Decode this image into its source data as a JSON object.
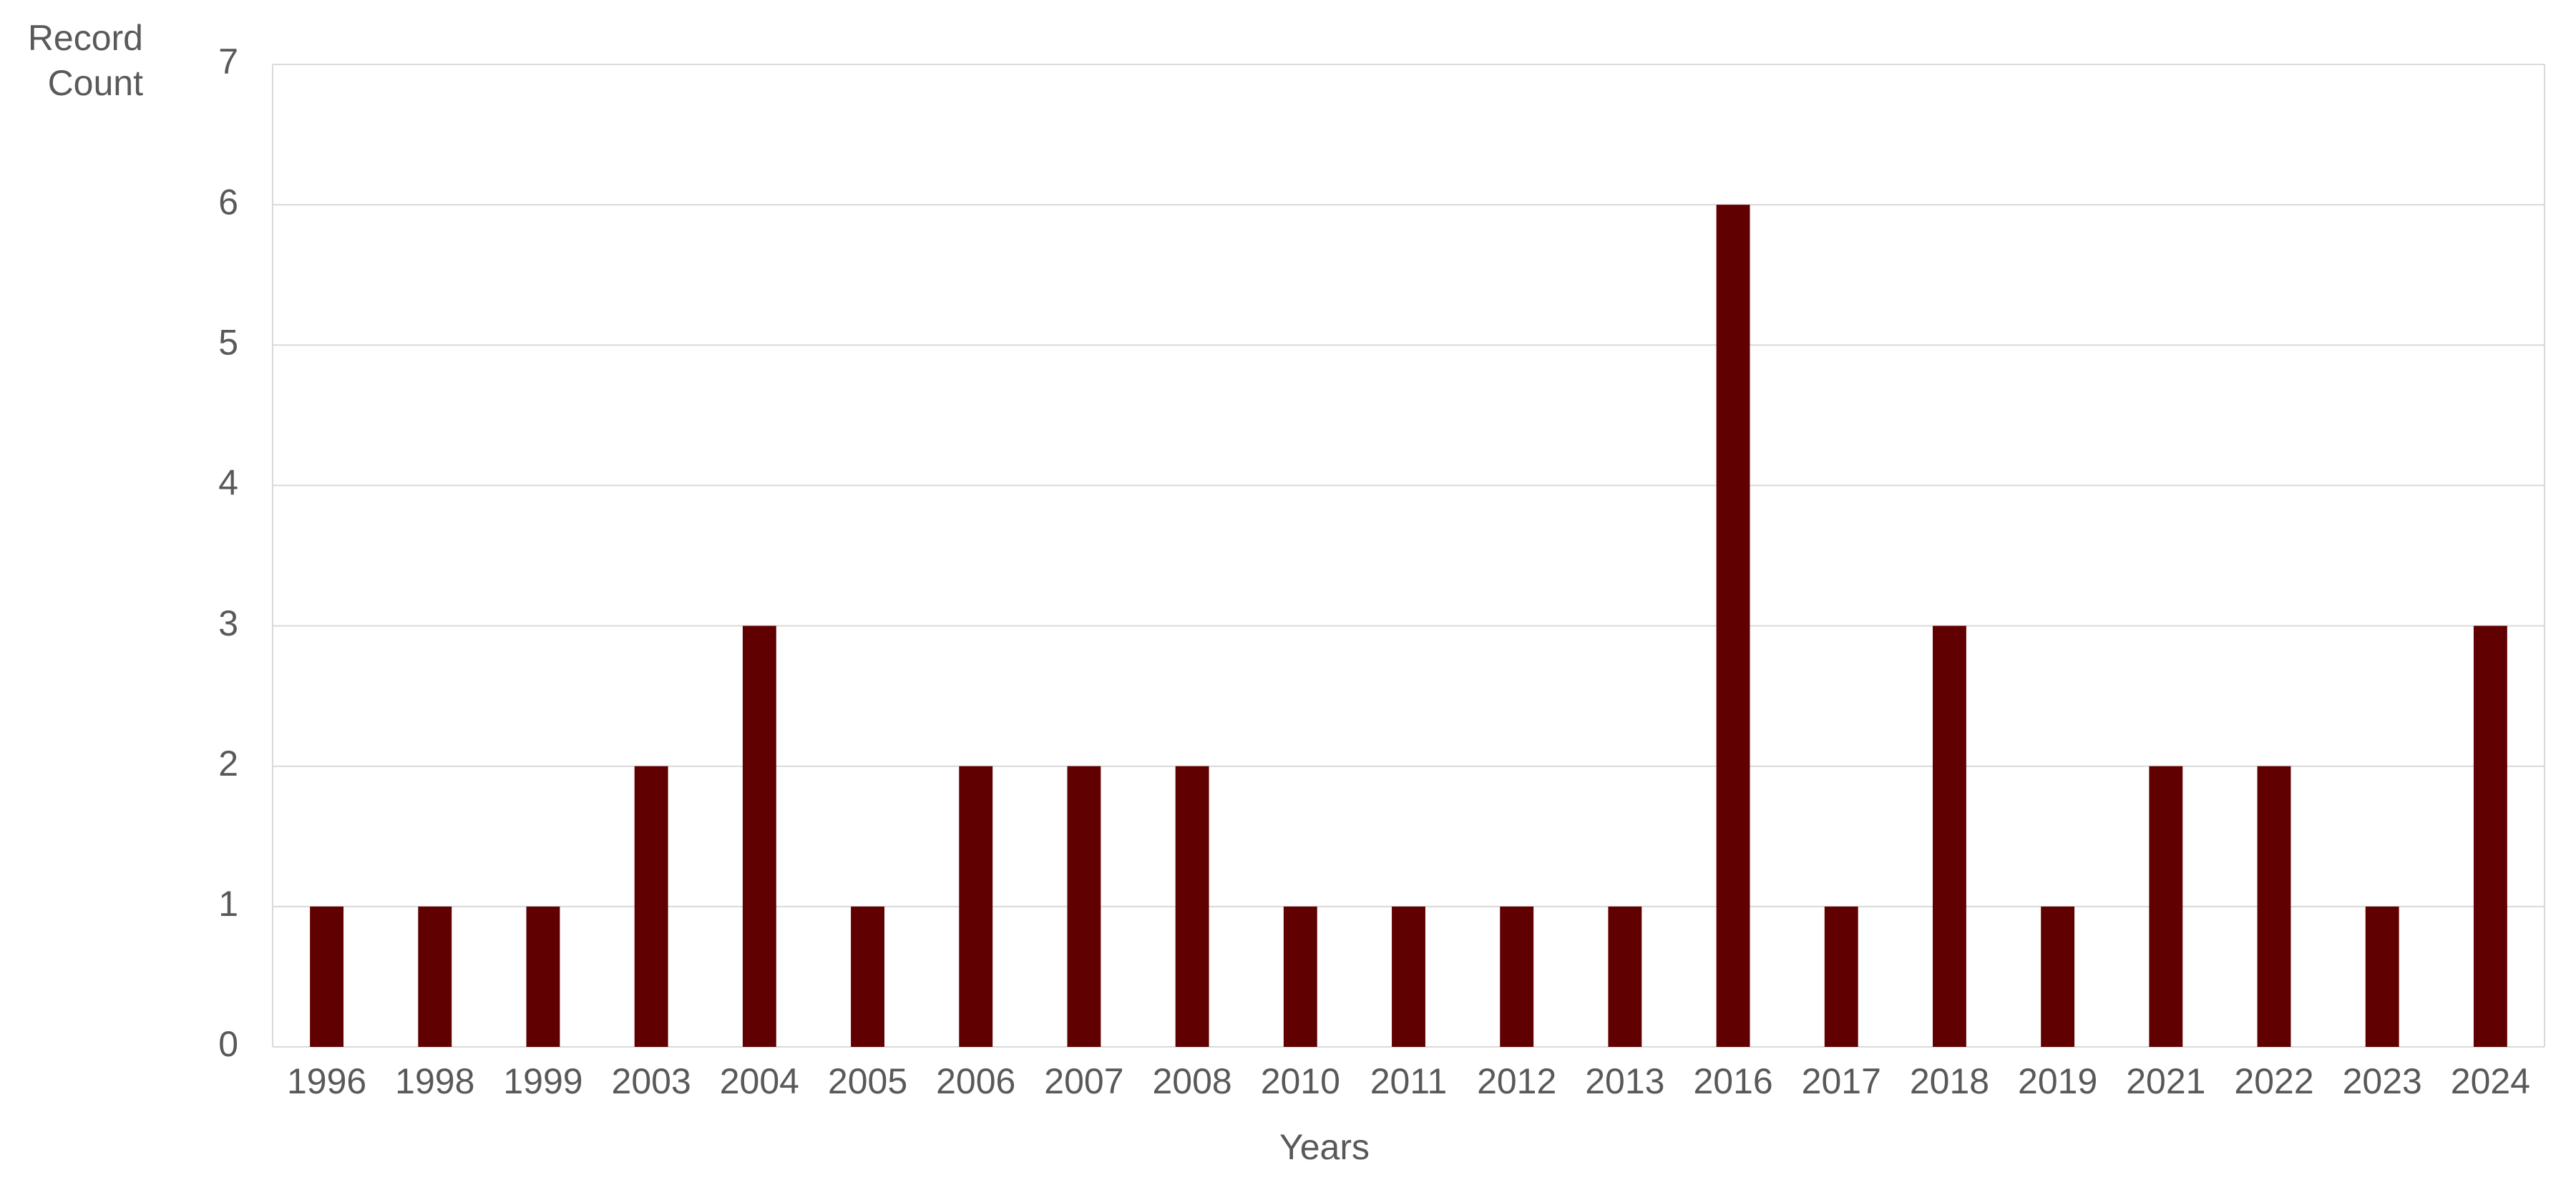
{
  "chart_data": {
    "type": "bar",
    "x_label": "Years",
    "y_label": "Record Count",
    "categories": [
      "1996",
      "1998",
      "1999",
      "2003",
      "2004",
      "2005",
      "2006",
      "2007",
      "2008",
      "2010",
      "2011",
      "2012",
      "2013",
      "2016",
      "2017",
      "2018",
      "2019",
      "2021",
      "2022",
      "2023",
      "2024"
    ],
    "values": [
      1,
      1,
      1,
      2,
      3,
      1,
      2,
      2,
      2,
      1,
      1,
      1,
      1,
      6,
      1,
      3,
      1,
      2,
      2,
      1,
      3
    ],
    "color": "#600000",
    "ylim": [
      0,
      7
    ],
    "yticks": [
      0,
      1,
      2,
      3,
      4,
      5,
      6,
      7
    ],
    "grid": true
  }
}
